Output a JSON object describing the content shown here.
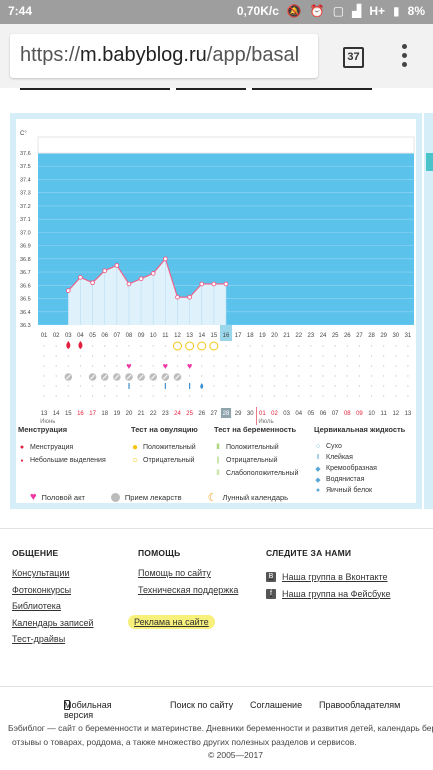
{
  "status": {
    "time": "7:44",
    "net": "0,70K/c",
    "signal": "H+",
    "battery": "8%"
  },
  "browser": {
    "url_scheme": "https://",
    "url_host": "m.babyblog.ru",
    "url_path": "/app/basal",
    "tab_count": "37"
  },
  "chart_data": {
    "type": "line",
    "ylabel": "C°",
    "y_ticks": [
      "37.6",
      "37.5",
      "37.4",
      "37.3",
      "37.2",
      "37.1",
      "37.0",
      "36.9",
      "36.8",
      "36.7",
      "36.6",
      "36.5",
      "36.4",
      "36.3"
    ],
    "ylim": [
      36.3,
      37.6
    ],
    "day_labels": [
      "01",
      "02",
      "03",
      "04",
      "05",
      "06",
      "07",
      "08",
      "09",
      "10",
      "11",
      "12",
      "13",
      "14",
      "15",
      "16",
      "17",
      "18",
      "19",
      "20",
      "21",
      "22",
      "23",
      "24",
      "25",
      "26",
      "27",
      "28",
      "29",
      "30",
      "31"
    ],
    "today_index": 15,
    "temps": [
      null,
      null,
      36.56,
      36.66,
      36.62,
      36.71,
      36.75,
      36.61,
      36.65,
      36.69,
      36.8,
      36.51,
      36.51,
      36.61,
      36.61,
      36.61
    ],
    "date_labels": [
      "13",
      "14",
      "15",
      "16",
      "17",
      "18",
      "19",
      "20",
      "21",
      "22",
      "23",
      "24",
      "25",
      "26",
      "27",
      "28",
      "29",
      "30",
      "01",
      "02",
      "03",
      "04",
      "05",
      "06",
      "07",
      "08",
      "09",
      "10",
      "11",
      "12",
      "13"
    ],
    "date_red_indices": [
      3,
      4,
      11,
      12,
      18,
      19,
      25,
      26
    ],
    "date_today_index": 15,
    "month_start": "Июнь",
    "month_next": "Июль",
    "menstruation": [
      2,
      3
    ],
    "ovulation_negative": [
      11,
      12,
      13,
      14
    ],
    "intercourse": [
      7,
      10,
      12
    ],
    "pills": [
      2,
      4,
      5,
      6,
      7,
      8,
      9,
      10,
      11
    ],
    "sticky": [
      7,
      10,
      12
    ],
    "watery": [
      13
    ]
  },
  "legend": {
    "menstruation": {
      "title": "Менструация",
      "items": [
        "Менструация",
        "Небольшие выделения"
      ]
    },
    "ovulation": {
      "title": "Тест на овуляцию",
      "items": [
        "Положительный",
        "Отрицательный"
      ]
    },
    "pregnancy": {
      "title": "Тест на беременность",
      "items": [
        "Положительный",
        "Отрицательный",
        "Слабоположительный"
      ]
    },
    "cervical": {
      "title": "Цервикальная жидкость",
      "items": [
        "Сухо",
        "Клейкая",
        "Кремообразная",
        "Водянистая",
        "Яичный белок"
      ]
    },
    "bottom": [
      "Половой акт",
      "Прием лекарств",
      "Лунный календарь"
    ]
  },
  "footer": {
    "general": {
      "title": "ОБЩЕНИЕ",
      "links": [
        "Консультации",
        "Фотоконкурсы",
        "Библиотека",
        "Календарь записей",
        "Тест-драйвы"
      ]
    },
    "help": {
      "title": "ПОМОЩЬ",
      "links": [
        "Помощь по сайту",
        "Техническая поддержка"
      ],
      "ads": "Реклама на сайте"
    },
    "follow": {
      "title": "СЛЕДИТЕ ЗА НАМИ",
      "vk": "Наша группа в Вконтакте",
      "fb": "Наша группа на Фейсбуке"
    },
    "bottom_links": [
      "Мобильная версия",
      "Поиск по сайту",
      "Соглашение",
      "Правообладателям"
    ],
    "copy1": "Бэбиблог — сайт о беременности и материнстве. Дневники беременности и развития детей, календарь берем",
    "copy2": "отзывы о товарах, роддома, а также множество других полезных разделов и сервисов.",
    "copy3": "© 2005—2017"
  },
  "colors": {
    "plot_bg": "#5bc2ec",
    "line": "#f25d86",
    "menstruation": "#e0203c",
    "ovulation": "#f7c515",
    "heart": "#f035a0",
    "accent_teal": "#4ac3c9",
    "today": "#9bd7ea"
  }
}
